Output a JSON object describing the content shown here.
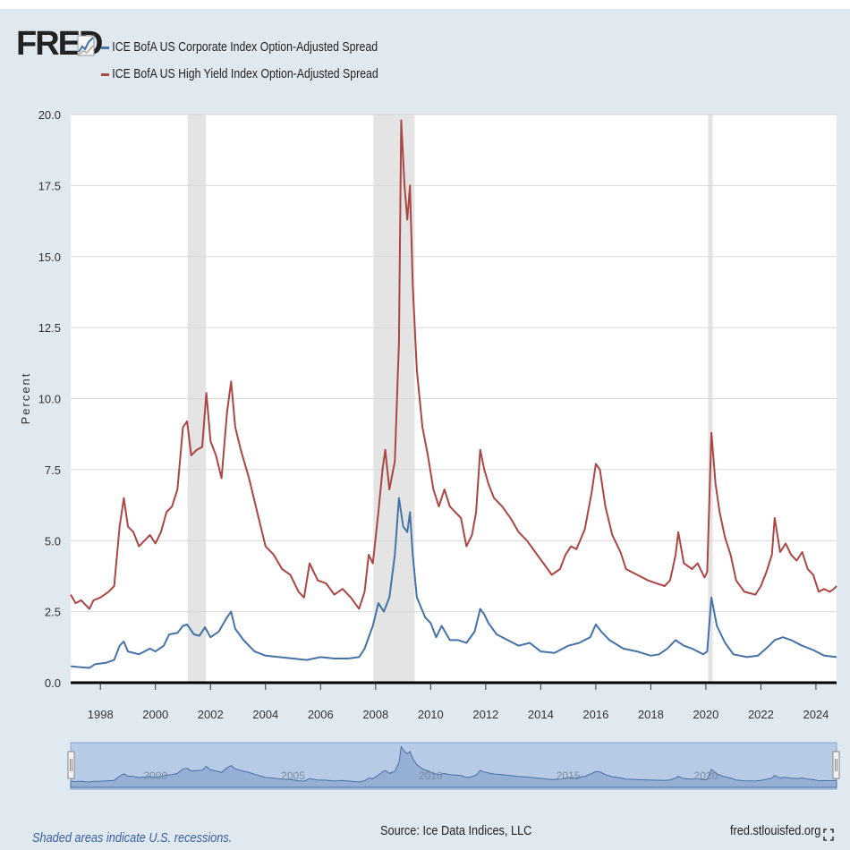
{
  "logo": {
    "text": "FRED"
  },
  "footer": {
    "recession_note": "Shaded areas indicate U.S. recessions.",
    "source": "Source: Ice Data Indices, LLC",
    "site": "fred.stlouisfed.org"
  },
  "icons": {
    "logo_graph": "graph-icon",
    "fullscreen": "fullscreen-icon",
    "navigator_handle": "drag-handle-icon"
  },
  "chart_data": {
    "type": "line",
    "title": "",
    "xlabel": "",
    "ylabel": "Percent",
    "ylim": [
      0,
      20
    ],
    "xlim": [
      1996.92,
      2024.75
    ],
    "y_ticks": [
      "0.0",
      "2.5",
      "5.0",
      "7.5",
      "10.0",
      "12.5",
      "15.0",
      "17.5",
      "20.0"
    ],
    "x_ticks": [
      "1998",
      "2000",
      "2002",
      "2004",
      "2006",
      "2008",
      "2010",
      "2012",
      "2014",
      "2016",
      "2018",
      "2020",
      "2022",
      "2024"
    ],
    "navigator_labels": [
      "2000",
      "2005",
      "2010",
      "2015",
      "2020"
    ],
    "recessions": [
      [
        2001.17,
        2001.83
      ],
      [
        2007.92,
        2009.42
      ],
      [
        2020.08,
        2020.25
      ]
    ],
    "series": [
      {
        "name": "ICE BofA US Corporate Index Option-Adjusted Spread",
        "color": "#4572a7",
        "points": [
          [
            1996.92,
            0.58
          ],
          [
            1997.2,
            0.55
          ],
          [
            1997.6,
            0.52
          ],
          [
            1997.8,
            0.65
          ],
          [
            1998.2,
            0.7
          ],
          [
            1998.5,
            0.8
          ],
          [
            1998.7,
            1.3
          ],
          [
            1998.85,
            1.45
          ],
          [
            1999.0,
            1.1
          ],
          [
            1999.4,
            1.0
          ],
          [
            1999.8,
            1.2
          ],
          [
            2000.0,
            1.1
          ],
          [
            2000.3,
            1.3
          ],
          [
            2000.5,
            1.7
          ],
          [
            2000.8,
            1.75
          ],
          [
            2001.0,
            2.0
          ],
          [
            2001.15,
            2.05
          ],
          [
            2001.4,
            1.7
          ],
          [
            2001.6,
            1.65
          ],
          [
            2001.8,
            1.95
          ],
          [
            2002.0,
            1.6
          ],
          [
            2002.3,
            1.8
          ],
          [
            2002.6,
            2.3
          ],
          [
            2002.75,
            2.5
          ],
          [
            2002.9,
            1.9
          ],
          [
            2003.2,
            1.5
          ],
          [
            2003.6,
            1.1
          ],
          [
            2004.0,
            0.95
          ],
          [
            2004.5,
            0.9
          ],
          [
            2005.0,
            0.85
          ],
          [
            2005.5,
            0.8
          ],
          [
            2006.0,
            0.9
          ],
          [
            2006.5,
            0.85
          ],
          [
            2007.0,
            0.85
          ],
          [
            2007.4,
            0.9
          ],
          [
            2007.6,
            1.2
          ],
          [
            2007.9,
            2.0
          ],
          [
            2008.1,
            2.8
          ],
          [
            2008.3,
            2.5
          ],
          [
            2008.5,
            3.0
          ],
          [
            2008.7,
            4.5
          ],
          [
            2008.85,
            6.5
          ],
          [
            2009.0,
            5.5
          ],
          [
            2009.15,
            5.3
          ],
          [
            2009.25,
            6.0
          ],
          [
            2009.35,
            4.5
          ],
          [
            2009.5,
            3.0
          ],
          [
            2009.8,
            2.3
          ],
          [
            2010.0,
            2.1
          ],
          [
            2010.2,
            1.6
          ],
          [
            2010.4,
            2.0
          ],
          [
            2010.7,
            1.5
          ],
          [
            2011.0,
            1.5
          ],
          [
            2011.3,
            1.4
          ],
          [
            2011.6,
            1.8
          ],
          [
            2011.8,
            2.6
          ],
          [
            2011.95,
            2.4
          ],
          [
            2012.1,
            2.1
          ],
          [
            2012.4,
            1.7
          ],
          [
            2012.8,
            1.5
          ],
          [
            2013.2,
            1.3
          ],
          [
            2013.6,
            1.4
          ],
          [
            2014.0,
            1.1
          ],
          [
            2014.5,
            1.05
          ],
          [
            2015.0,
            1.3
          ],
          [
            2015.4,
            1.4
          ],
          [
            2015.8,
            1.6
          ],
          [
            2016.0,
            2.05
          ],
          [
            2016.2,
            1.8
          ],
          [
            2016.5,
            1.5
          ],
          [
            2017.0,
            1.2
          ],
          [
            2017.5,
            1.1
          ],
          [
            2018.0,
            0.95
          ],
          [
            2018.3,
            1.0
          ],
          [
            2018.6,
            1.2
          ],
          [
            2018.9,
            1.5
          ],
          [
            2019.2,
            1.3
          ],
          [
            2019.5,
            1.2
          ],
          [
            2019.9,
            1.0
          ],
          [
            2020.05,
            1.1
          ],
          [
            2020.2,
            3.0
          ],
          [
            2020.4,
            2.0
          ],
          [
            2020.7,
            1.4
          ],
          [
            2021.0,
            1.0
          ],
          [
            2021.5,
            0.9
          ],
          [
            2021.9,
            0.95
          ],
          [
            2022.3,
            1.3
          ],
          [
            2022.5,
            1.5
          ],
          [
            2022.8,
            1.6
          ],
          [
            2023.1,
            1.5
          ],
          [
            2023.5,
            1.3
          ],
          [
            2023.9,
            1.15
          ],
          [
            2024.3,
            0.95
          ],
          [
            2024.75,
            0.9
          ]
        ]
      },
      {
        "name": "ICE BofA US High Yield Index Option-Adjusted Spread",
        "color": "#aa4643",
        "points": [
          [
            1996.92,
            3.1
          ],
          [
            1997.1,
            2.8
          ],
          [
            1997.3,
            2.9
          ],
          [
            1997.6,
            2.6
          ],
          [
            1997.75,
            2.9
          ],
          [
            1998.0,
            3.0
          ],
          [
            1998.3,
            3.2
          ],
          [
            1998.5,
            3.4
          ],
          [
            1998.7,
            5.5
          ],
          [
            1998.85,
            6.5
          ],
          [
            1999.0,
            5.5
          ],
          [
            1999.2,
            5.3
          ],
          [
            1999.4,
            4.8
          ],
          [
            1999.6,
            5.0
          ],
          [
            1999.8,
            5.2
          ],
          [
            2000.0,
            4.9
          ],
          [
            2000.2,
            5.3
          ],
          [
            2000.4,
            6.0
          ],
          [
            2000.6,
            6.2
          ],
          [
            2000.8,
            6.8
          ],
          [
            2001.0,
            9.0
          ],
          [
            2001.15,
            9.2
          ],
          [
            2001.3,
            8.0
          ],
          [
            2001.5,
            8.2
          ],
          [
            2001.7,
            8.3
          ],
          [
            2001.85,
            10.2
          ],
          [
            2002.0,
            8.5
          ],
          [
            2002.2,
            8.0
          ],
          [
            2002.4,
            7.2
          ],
          [
            2002.6,
            9.5
          ],
          [
            2002.75,
            10.6
          ],
          [
            2002.9,
            9.0
          ],
          [
            2003.1,
            8.2
          ],
          [
            2003.4,
            7.2
          ],
          [
            2003.7,
            6.0
          ],
          [
            2004.0,
            4.8
          ],
          [
            2004.3,
            4.5
          ],
          [
            2004.6,
            4.0
          ],
          [
            2004.9,
            3.8
          ],
          [
            2005.2,
            3.2
          ],
          [
            2005.4,
            3.0
          ],
          [
            2005.6,
            4.2
          ],
          [
            2005.9,
            3.6
          ],
          [
            2006.2,
            3.5
          ],
          [
            2006.5,
            3.1
          ],
          [
            2006.8,
            3.3
          ],
          [
            2007.1,
            3.0
          ],
          [
            2007.4,
            2.6
          ],
          [
            2007.6,
            3.2
          ],
          [
            2007.75,
            4.5
          ],
          [
            2007.9,
            4.2
          ],
          [
            2008.1,
            6.0
          ],
          [
            2008.25,
            7.5
          ],
          [
            2008.35,
            8.2
          ],
          [
            2008.5,
            6.8
          ],
          [
            2008.7,
            7.8
          ],
          [
            2008.85,
            12.0
          ],
          [
            2008.93,
            19.8
          ],
          [
            2009.05,
            17.5
          ],
          [
            2009.15,
            16.3
          ],
          [
            2009.25,
            17.5
          ],
          [
            2009.35,
            14.0
          ],
          [
            2009.5,
            11.0
          ],
          [
            2009.7,
            9.0
          ],
          [
            2009.9,
            8.0
          ],
          [
            2010.1,
            6.8
          ],
          [
            2010.3,
            6.2
          ],
          [
            2010.5,
            6.8
          ],
          [
            2010.7,
            6.2
          ],
          [
            2010.9,
            6.0
          ],
          [
            2011.1,
            5.8
          ],
          [
            2011.3,
            4.8
          ],
          [
            2011.5,
            5.2
          ],
          [
            2011.65,
            6.0
          ],
          [
            2011.8,
            8.2
          ],
          [
            2011.95,
            7.5
          ],
          [
            2012.1,
            7.0
          ],
          [
            2012.3,
            6.5
          ],
          [
            2012.6,
            6.2
          ],
          [
            2012.9,
            5.8
          ],
          [
            2013.2,
            5.3
          ],
          [
            2013.5,
            5.0
          ],
          [
            2013.8,
            4.6
          ],
          [
            2014.1,
            4.2
          ],
          [
            2014.4,
            3.8
          ],
          [
            2014.7,
            4.0
          ],
          [
            2014.9,
            4.5
          ],
          [
            2015.1,
            4.8
          ],
          [
            2015.3,
            4.7
          ],
          [
            2015.6,
            5.4
          ],
          [
            2015.85,
            6.7
          ],
          [
            2016.0,
            7.7
          ],
          [
            2016.15,
            7.5
          ],
          [
            2016.35,
            6.2
          ],
          [
            2016.6,
            5.2
          ],
          [
            2016.9,
            4.6
          ],
          [
            2017.1,
            4.0
          ],
          [
            2017.5,
            3.8
          ],
          [
            2017.9,
            3.6
          ],
          [
            2018.2,
            3.5
          ],
          [
            2018.5,
            3.4
          ],
          [
            2018.7,
            3.6
          ],
          [
            2018.9,
            4.5
          ],
          [
            2019.0,
            5.3
          ],
          [
            2019.2,
            4.2
          ],
          [
            2019.5,
            4.0
          ],
          [
            2019.7,
            4.2
          ],
          [
            2019.95,
            3.7
          ],
          [
            2020.05,
            3.9
          ],
          [
            2020.2,
            8.8
          ],
          [
            2020.35,
            7.0
          ],
          [
            2020.5,
            6.0
          ],
          [
            2020.7,
            5.1
          ],
          [
            2020.9,
            4.5
          ],
          [
            2021.1,
            3.6
          ],
          [
            2021.4,
            3.2
          ],
          [
            2021.8,
            3.1
          ],
          [
            2022.0,
            3.4
          ],
          [
            2022.2,
            3.9
          ],
          [
            2022.4,
            4.5
          ],
          [
            2022.5,
            5.8
          ],
          [
            2022.7,
            4.6
          ],
          [
            2022.9,
            4.9
          ],
          [
            2023.1,
            4.5
          ],
          [
            2023.3,
            4.3
          ],
          [
            2023.5,
            4.6
          ],
          [
            2023.7,
            4.0
          ],
          [
            2023.9,
            3.8
          ],
          [
            2024.1,
            3.2
          ],
          [
            2024.3,
            3.3
          ],
          [
            2024.5,
            3.2
          ],
          [
            2024.65,
            3.3
          ],
          [
            2024.75,
            3.4
          ]
        ]
      }
    ]
  }
}
